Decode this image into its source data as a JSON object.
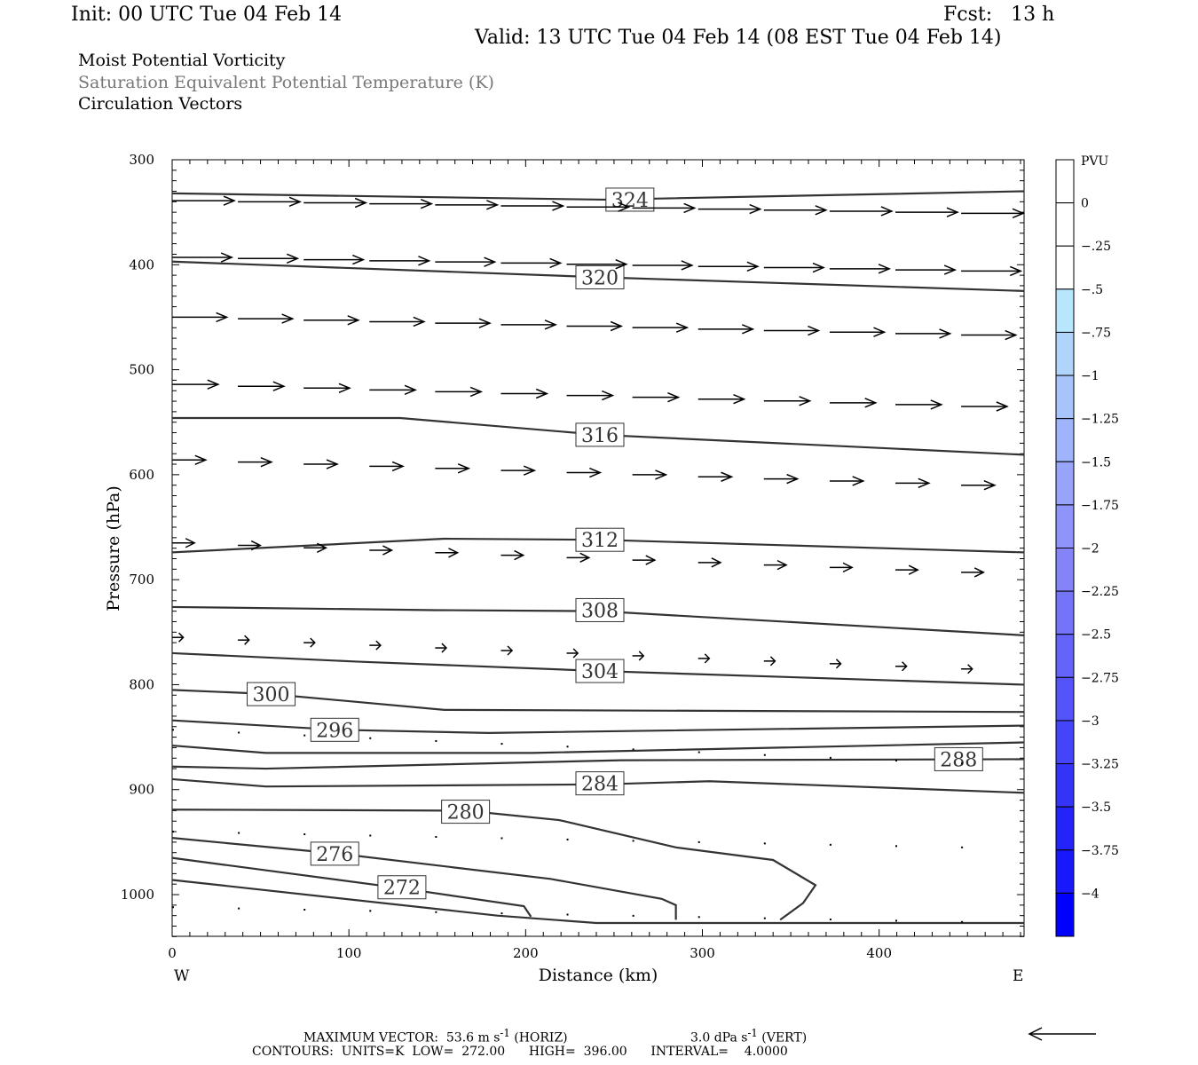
{
  "header": {
    "init": "Init: 00 UTC Tue 04 Feb 14",
    "fcst": "Fcst:   13 h",
    "valid": "Valid: 13 UTC Tue 04 Feb 14 (08 EST Tue 04 Feb 14)",
    "field1": "Moist Potential Vorticity",
    "field2": "Saturation Equivalent Potential Temperature (K)",
    "field3": "Circulation Vectors"
  },
  "footer": {
    "max_vector": "MAXIMUM VECTOR:  53.6 m s",
    "max_vector_sup": "-1",
    "horiz": "(HORIZ)",
    "vert": "3.0 dPa s",
    "vert_sup": "-1",
    "vert_label": "(VERT)",
    "contours": "CONTOURS:  UNITS=K  LOW=  272.00      HIGH=  396.00      INTERVAL=    4.0000"
  },
  "chart_data": {
    "type": "line",
    "title": "Moist Potential Vorticity / Saturation Equivalent Potential Temperature (K) / Circulation Vectors",
    "xlabel": "Distance (km)",
    "ylabel": "Pressure (hPa)",
    "xlim": [
      0,
      482
    ],
    "ylim": [
      1040,
      300
    ],
    "xticks": [
      0,
      100,
      200,
      300,
      400
    ],
    "yticks": [
      300,
      400,
      500,
      600,
      700,
      800,
      900,
      1000
    ],
    "x_end_labels": {
      "left": "W",
      "right": "E"
    },
    "contours": [
      {
        "value": 324,
        "label": "324",
        "label_at": [
          259,
          338
        ],
        "points": [
          [
            0,
            332
          ],
          [
            244,
            338
          ],
          [
            482,
            330
          ]
        ]
      },
      {
        "value": 320,
        "label": "320",
        "label_at": [
          242,
          412
        ],
        "points": [
          [
            0,
            397
          ],
          [
            244,
            412
          ],
          [
            482,
            425
          ]
        ]
      },
      {
        "value": 316,
        "label": "316",
        "label_at": [
          242,
          562
        ],
        "points": [
          [
            0,
            546
          ],
          [
            129,
            546
          ],
          [
            242,
            562
          ],
          [
            482,
            581
          ]
        ]
      },
      {
        "value": 312,
        "label": "312",
        "label_at": [
          242,
          662
        ],
        "points": [
          [
            0,
            674
          ],
          [
            154,
            661
          ],
          [
            242,
            662
          ],
          [
            482,
            674
          ]
        ]
      },
      {
        "value": 308,
        "label": "308",
        "label_at": [
          242,
          729
        ],
        "points": [
          [
            0,
            726
          ],
          [
            149,
            729
          ],
          [
            242,
            730
          ],
          [
            482,
            753
          ]
        ]
      },
      {
        "value": 304,
        "label": "304",
        "label_at": [
          242,
          787
        ],
        "points": [
          [
            0,
            770
          ],
          [
            104,
            778
          ],
          [
            242,
            787
          ],
          [
            482,
            800
          ]
        ]
      },
      {
        "value": 300,
        "label": "300",
        "label_at": [
          56,
          809
        ],
        "points": [
          [
            0,
            805
          ],
          [
            56,
            809
          ],
          [
            154,
            824
          ],
          [
            482,
            826
          ]
        ]
      },
      {
        "value": 296,
        "label": "296",
        "label_at": [
          92,
          843
        ],
        "points": [
          [
            0,
            834
          ],
          [
            94,
            843
          ],
          [
            179,
            846
          ],
          [
            482,
            839
          ]
        ]
      },
      {
        "value": 292,
        "label": null,
        "points": [
          [
            0,
            858
          ],
          [
            53,
            865
          ],
          [
            204,
            865
          ],
          [
            482,
            855
          ]
        ]
      },
      {
        "value": 288,
        "label": "288",
        "label_at": [
          445,
          871
        ],
        "points": [
          [
            0,
            878
          ],
          [
            53,
            880
          ],
          [
            254,
            872
          ],
          [
            482,
            871
          ]
        ]
      },
      {
        "value": 284,
        "label": "284",
        "label_at": [
          242,
          894
        ],
        "points": [
          [
            0,
            890
          ],
          [
            53,
            897
          ],
          [
            242,
            895
          ],
          [
            304,
            892
          ],
          [
            482,
            903
          ]
        ]
      },
      {
        "value": 280,
        "label": "280",
        "label_at": [
          166,
          921
        ],
        "points": [
          [
            0,
            919
          ],
          [
            166,
            920
          ],
          [
            219,
            929
          ],
          [
            285,
            955
          ],
          [
            340,
            967
          ],
          [
            364,
            991
          ],
          [
            357,
            1008
          ],
          [
            344,
            1024
          ]
        ]
      },
      {
        "value": 276,
        "label": "276",
        "label_at": [
          92,
          961
        ],
        "points": [
          [
            0,
            946
          ],
          [
            94,
            961
          ],
          [
            214,
            985
          ],
          [
            277,
            1004
          ],
          [
            285,
            1010
          ],
          [
            285,
            1024
          ]
        ]
      },
      {
        "value": 272,
        "label": "272",
        "label_at": [
          130,
          993
        ],
        "points": [
          [
            0,
            965
          ],
          [
            130,
            994
          ],
          [
            199,
            1011
          ],
          [
            203,
            1021
          ]
        ]
      },
      {
        "value": null,
        "label": null,
        "points": [
          [
            0,
            986
          ],
          [
            184,
            1020
          ],
          [
            240,
            1027
          ],
          [
            482,
            1027
          ]
        ]
      }
    ],
    "vectors": {
      "columns_km": [
        0,
        37.2,
        74.4,
        111.6,
        148.8,
        186,
        223.2,
        260.4,
        297.6,
        334.8,
        372,
        409.2,
        446.4
      ],
      "rows": [
        {
          "p_west": 339,
          "p_east": 351,
          "speed": 50
        },
        {
          "p_west": 393,
          "p_east": 406,
          "speed": 48
        },
        {
          "p_west": 450,
          "p_east": 467,
          "speed": 44
        },
        {
          "p_west": 514,
          "p_east": 535,
          "speed": 37
        },
        {
          "p_west": 586,
          "p_east": 610,
          "speed": 27
        },
        {
          "p_west": 665,
          "p_east": 693,
          "speed": 18
        },
        {
          "p_west": 755,
          "p_east": 785,
          "speed": 9
        },
        {
          "p_west": 843,
          "p_east": 875,
          "speed": 1
        },
        {
          "p_west": 940,
          "p_east": 955,
          "speed": 0.5
        },
        {
          "p_west": 1012,
          "p_east": 1026,
          "speed": 0.5
        }
      ],
      "max_speed": 53.6
    },
    "colorbar": {
      "title": "PVU",
      "labels": [
        "0",
        "-.25",
        "-.5",
        "-.75",
        "-1",
        "-1.25",
        "-1.5",
        "-1.75",
        "-2",
        "-2.25",
        "-2.5",
        "-2.75",
        "-3",
        "-3.25",
        "-3.5",
        "-3.75",
        "-4"
      ],
      "colors": [
        "#ffffff",
        "#ffffff",
        "#b8e6fc",
        "#b0d4fa",
        "#a8c4fc",
        "#a0b4fb",
        "#98a4fa",
        "#8e94f9",
        "#8484f8",
        "#7474f8",
        "#6464f8",
        "#5454f8",
        "#4444f8",
        "#3434f9",
        "#2424fa",
        "#1818fc",
        "#0000ff"
      ]
    }
  }
}
